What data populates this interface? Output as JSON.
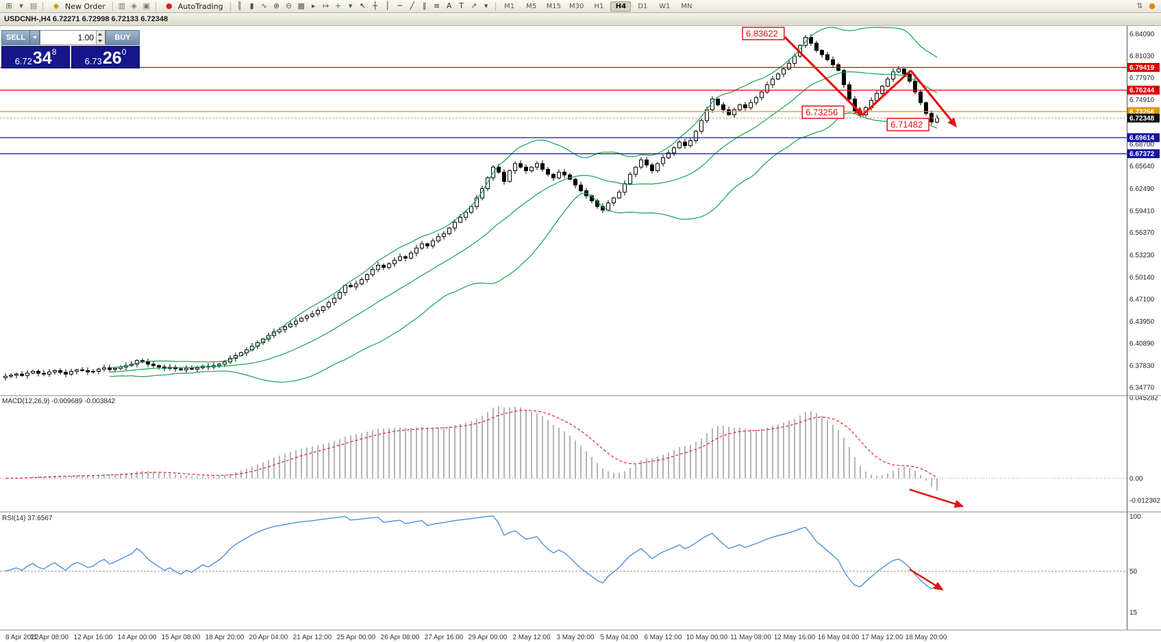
{
  "title_bar": {
    "text": "USDCNH-,H4   6.72271 6.72998 6.72133 6.72348"
  },
  "toolbar": {
    "file_icons": [
      {
        "name": "new-chart-icon",
        "glyph": "⊞",
        "color": "#2f7d32"
      },
      {
        "name": "new-chart-dropdown-icon",
        "glyph": "▾",
        "color": "#555555"
      },
      {
        "name": "profiles-icon",
        "glyph": "▤",
        "color": "#777777"
      }
    ],
    "new_order": {
      "label": "New Order",
      "glyph": "◆",
      "icon_color": "#cf9a16"
    },
    "mid_icons": [
      {
        "name": "market-watch-icon",
        "glyph": "▥",
        "color": "#777777"
      },
      {
        "name": "navigator-icon",
        "glyph": "◈",
        "color": "#777777"
      },
      {
        "name": "terminal-icon",
        "glyph": "▣",
        "color": "#777777"
      }
    ],
    "autotrading": {
      "label": "AutoTrading",
      "glyph": "●",
      "dot_color": "#cc2222"
    },
    "tool_icons": [
      {
        "name": "bar-chart-icon",
        "glyph": "║",
        "color": "#555555"
      },
      {
        "name": "candlestick-chart-icon",
        "glyph": "▮",
        "color": "#555555"
      },
      {
        "name": "line-chart-icon",
        "glyph": "∿",
        "color": "#555555"
      },
      {
        "name": "zoom-in-icon",
        "glyph": "⊕",
        "color": "#555555"
      },
      {
        "name": "zoom-out-icon",
        "glyph": "⊖",
        "color": "#555555"
      },
      {
        "name": "tile-windows-icon",
        "glyph": "▦",
        "color": "#555555"
      },
      {
        "name": "auto-scroll-icon",
        "glyph": "▸",
        "color": "#555555"
      },
      {
        "name": "chart-shift-icon",
        "glyph": "↦",
        "color": "#555555"
      },
      {
        "name": "indicators-icon",
        "glyph": "+",
        "color": "#2f7d32"
      },
      {
        "name": "indicators-dropdown-icon",
        "glyph": "▾",
        "color": "#555555"
      },
      {
        "name": "cursor-icon",
        "glyph": "↖",
        "color": "#333333"
      },
      {
        "name": "crosshair-icon",
        "glyph": "┼",
        "color": "#333333"
      },
      {
        "name": "vertical-line-icon",
        "glyph": "│",
        "color": "#333333"
      },
      {
        "name": "horizontal-line-icon",
        "glyph": "─",
        "color": "#333333"
      },
      {
        "name": "trendline-icon",
        "glyph": "╱",
        "color": "#333333"
      },
      {
        "name": "channel-icon",
        "glyph": "∥",
        "color": "#333333"
      },
      {
        "name": "fibonacci-icon",
        "glyph": "≡",
        "color": "#333333"
      },
      {
        "name": "text-icon",
        "glyph": "A",
        "color": "#333333"
      },
      {
        "name": "text-label-icon",
        "glyph": "T",
        "color": "#333333"
      },
      {
        "name": "arrows-icon",
        "glyph": "↗",
        "color": "#aa3333"
      },
      {
        "name": "arrows-dropdown-icon",
        "glyph": "▾",
        "color": "#555555"
      }
    ],
    "timeframes": [
      "M1",
      "M5",
      "M15",
      "M30",
      "H1",
      "H4",
      "D1",
      "W1",
      "MN"
    ],
    "active_timeframe": "H4",
    "right_icons": [
      {
        "name": "docking-icon",
        "glyph": "⇅",
        "color": "#666666"
      },
      {
        "name": "notification-dot-icon",
        "glyph": "●",
        "color": "#ee8200"
      }
    ]
  },
  "trade_panel": {
    "sell_label": "SELL",
    "buy_label": "BUY",
    "volume": "1.00",
    "sell_price": {
      "base": "6.72",
      "big": "34",
      "sup": "8"
    },
    "buy_price": {
      "base": "6.73",
      "big": "26",
      "sup": "0"
    }
  },
  "chart_data": {
    "type": "candlestick",
    "symbol": "USDCNH-",
    "timeframe": "H4",
    "ohlc_text": "6.72271 6.72998 6.72133 6.72348",
    "current_price": 6.72348,
    "current_price_label": "6.72348",
    "price_axis_labels": [
      "6.84090",
      "6.81030",
      "6.77970",
      "6.74910",
      "6.68700",
      "6.65640",
      "6.62490",
      "6.59410",
      "6.56370",
      "6.53230",
      "6.50140",
      "6.47100",
      "6.43950",
      "6.40890",
      "6.37830",
      "6.34770"
    ],
    "x_label_step": 8,
    "x_labels": [
      "8 Apr 2022",
      "11 Apr 08:00",
      "12 Apr 16:00",
      "14 Apr 00:00",
      "15 Apr 08:00",
      "18 Apr 20:00",
      "20 Apr 04:00",
      "21 Apr 12:00",
      "25 Apr 00:00",
      "26 Apr 08:00",
      "27 Apr 16:00",
      "29 Apr 00:00",
      "2 May 12:00",
      "3 May 20:00",
      "5 May 04:00",
      "6 May 12:00",
      "10 May 00:00",
      "11 May 08:00",
      "12 May 16:00",
      "16 May 04:00",
      "17 May 12:00",
      "18 May 20:00"
    ],
    "closes": [
      6.363,
      6.3645,
      6.366,
      6.364,
      6.3675,
      6.37,
      6.3672,
      6.366,
      6.369,
      6.371,
      6.3685,
      6.366,
      6.37,
      6.372,
      6.371,
      6.369,
      6.37,
      6.373,
      6.375,
      6.3725,
      6.374,
      6.376,
      6.378,
      6.38,
      6.385,
      6.383,
      6.38,
      6.378,
      6.376,
      6.374,
      6.3755,
      6.3735,
      6.372,
      6.374,
      6.373,
      6.375,
      6.377,
      6.376,
      6.378,
      6.38,
      6.383,
      6.388,
      6.392,
      6.396,
      6.4,
      6.405,
      6.41,
      6.415,
      6.42,
      6.425,
      6.428,
      6.432,
      6.436,
      6.44,
      6.444,
      6.447,
      6.45,
      6.455,
      6.46,
      6.466,
      6.472,
      6.48,
      6.49,
      6.488,
      6.492,
      6.498,
      6.505,
      6.512,
      6.518,
      6.515,
      6.52,
      6.525,
      6.53,
      6.528,
      6.535,
      6.542,
      6.548,
      6.545,
      6.552,
      6.558,
      6.562,
      6.57,
      6.578,
      6.585,
      6.592,
      6.6,
      6.612,
      6.625,
      6.64,
      6.655,
      6.648,
      6.635,
      6.65,
      6.66,
      6.655,
      6.65,
      6.655,
      6.66,
      6.652,
      6.645,
      6.64,
      6.648,
      6.644,
      6.638,
      6.63,
      6.622,
      6.615,
      6.608,
      6.6,
      6.595,
      6.605,
      6.612,
      6.62,
      6.632,
      6.645,
      6.655,
      6.665,
      6.658,
      6.65,
      6.66,
      6.668,
      6.675,
      6.682,
      6.69,
      6.685,
      6.692,
      6.705,
      6.72,
      6.735,
      6.75,
      6.742,
      6.735,
      6.728,
      6.735,
      6.742,
      6.738,
      6.745,
      6.752,
      6.76,
      6.77,
      6.778,
      6.785,
      6.792,
      6.8,
      6.81,
      6.825,
      6.8362,
      6.828,
      6.818,
      6.812,
      6.805,
      6.798,
      6.79,
      6.77,
      6.75,
      6.733,
      6.728,
      6.738,
      6.748,
      6.758,
      6.768,
      6.778,
      6.788,
      6.792,
      6.785,
      6.775,
      6.76,
      6.745,
      6.73,
      6.718,
      6.7235
    ],
    "bollinger": {
      "period": 20,
      "deviation": 2,
      "color": "#18a24e"
    },
    "price_lines": [
      {
        "price": 6.79419,
        "label": "6.79419",
        "color": "#e00000"
      },
      {
        "price": 6.76244,
        "label": "6.76244",
        "color": "#e00000"
      },
      {
        "price": 6.73256,
        "label": "6.73256",
        "color": "#e89400"
      },
      {
        "price": 6.69614,
        "label": "6.69614",
        "color": "#1414a0"
      },
      {
        "price": 6.67372,
        "label": "6.67372",
        "color": "#1414a0"
      }
    ],
    "annotations": [
      {
        "text": "6.83622",
        "idx": 134.5,
        "price": 6.8415
      },
      {
        "text": "6.73256",
        "idx": 145.4,
        "price": 6.7317
      },
      {
        "text": "6.71482",
        "idx": 160.9,
        "price": 6.7144
      }
    ],
    "trend_arrows": [
      {
        "from": [
          142.2,
          6.8367
        ],
        "to": [
          156.4,
          6.7278
        ],
        "head": true
      },
      {
        "from": [
          156.4,
          6.7278
        ],
        "to": [
          165.2,
          6.7899
        ],
        "head": false
      },
      {
        "from": [
          165.2,
          6.7899
        ],
        "to": [
          173.4,
          6.7126
        ],
        "head": true
      }
    ],
    "macd": {
      "label": "MACD(12,26,9)",
      "values_text": "-0.009689 -0.003842",
      "scale_max": 0.046,
      "scale_min": -0.0185,
      "axis_labels": [
        {
          "text": "0.045282",
          "v": 0.045282
        },
        {
          "text": "0.00",
          "v": 0.0
        },
        {
          "text": "-0.012302",
          "v": -0.012302
        }
      ],
      "arrow": {
        "from": [
          165,
          -0.0063
        ],
        "to": [
          174.6,
          -0.0156
        ]
      }
    },
    "rsi": {
      "label": "RSI(14)",
      "value_text": "37.6567",
      "levels": [
        50
      ],
      "axis_labels": [
        {
          "text": "100",
          "v": 100
        },
        {
          "text": "50",
          "v": 50
        },
        {
          "text": "15",
          "v": 15
        }
      ],
      "arrow": {
        "from": [
          165,
          51.5
        ],
        "to": [
          170.9,
          34.5
        ]
      }
    },
    "colors": {
      "candle_outline": "#000000",
      "macd_histogram": "#b4b4b4",
      "macd_signal": "#e02020",
      "rsi_line": "#4f8fde",
      "annotation_red": "#e31212",
      "bid_tag_bg": "#111111"
    }
  }
}
